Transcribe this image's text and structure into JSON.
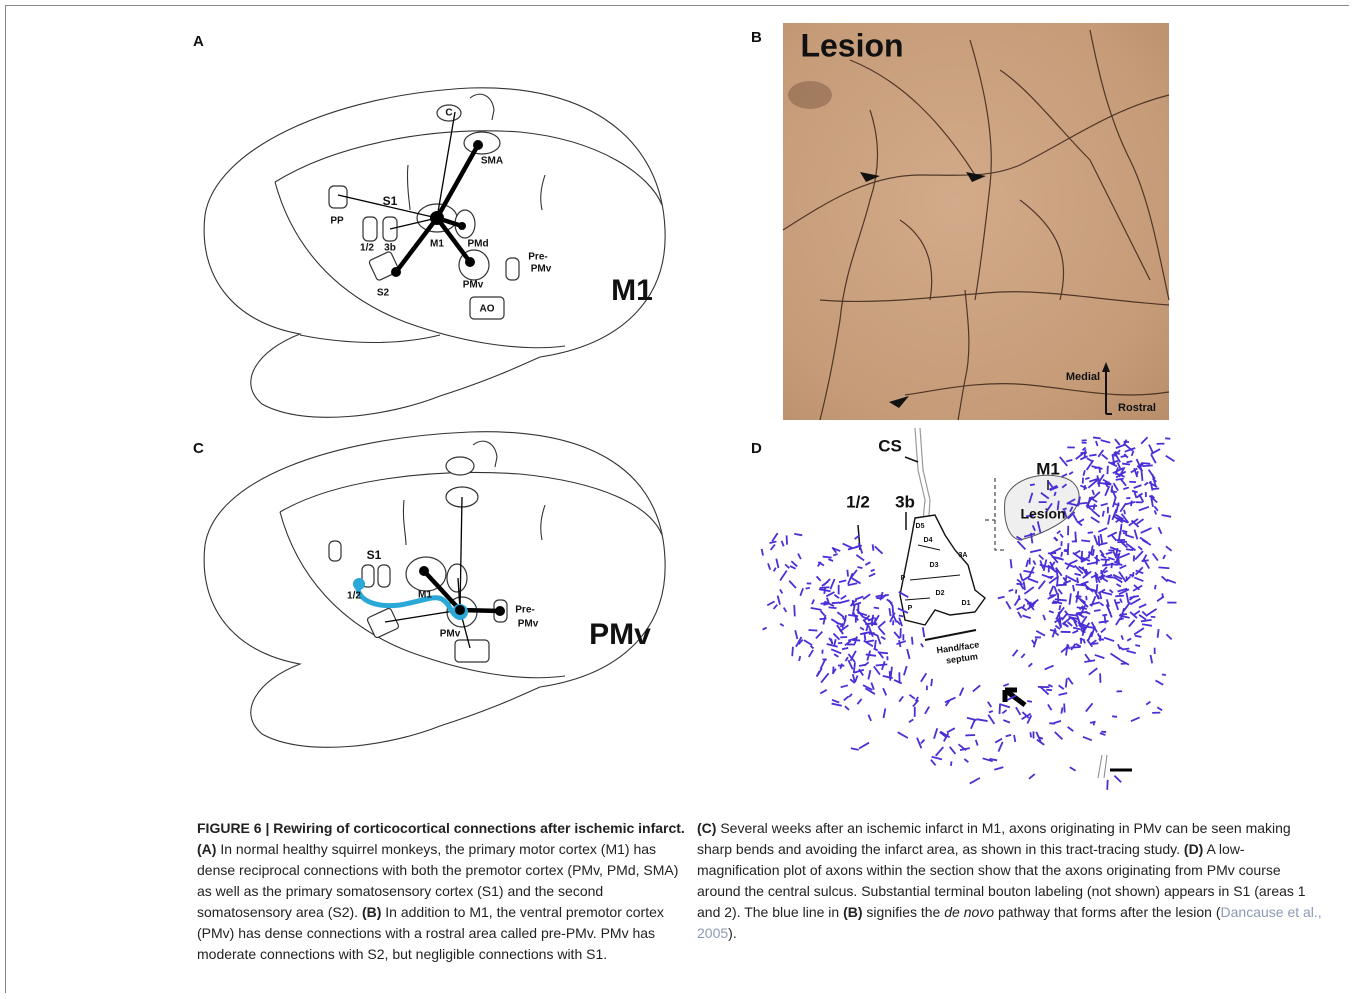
{
  "panels": [
    {
      "letter": "A",
      "labels": [
        "C",
        "SMA",
        "S1",
        "PP",
        "1/2",
        "3b",
        "M1",
        "PMd",
        "Pre-",
        "PMv",
        "S2",
        "PMv",
        "AO",
        "M1"
      ]
    },
    {
      "letter": "B",
      "labels": [
        "Lesion",
        "Medial",
        "Rostral"
      ]
    },
    {
      "letter": "C",
      "labels": [
        "S1",
        "1/2",
        "M1",
        "PMv",
        "Pre-",
        "PMv",
        "PMv"
      ]
    },
    {
      "letter": "D",
      "labels": [
        "CS",
        "M1",
        "1/2",
        "3b",
        "Lesion",
        "D5",
        "D4",
        "D3",
        "D2",
        "D1",
        "P",
        "P",
        "3A",
        "Hand/face",
        "septum"
      ]
    }
  ],
  "caption": {
    "title": "FIGURE 6 | Rewiring of corticocortical connections after ischemic infarct.",
    "left": [
      {
        "text": "(A)",
        "style": "bold"
      },
      {
        "text": " In normal healthy squirrel monkeys, the primary motor cortex (M1) has dense reciprocal connections with both the premotor cortex (PMv, PMd, SMA) as well as the primary somatosensory cortex (S1) and the second somatosensory area (S2). ",
        "style": "normal"
      },
      {
        "text": "(B)",
        "style": "bold"
      },
      {
        "text": " In addition to M1, the ventral premotor cortex (PMv) has dense connections with a rostral area called pre-PMv. PMv has moderate connections with S2, but negligible connections with S1.",
        "style": "normal"
      }
    ],
    "right": [
      {
        "text": "(C)",
        "style": "bold"
      },
      {
        "text": " Several weeks after an ischemic infarct in M1, axons originating in PMv can be seen making sharp bends and avoiding the infarct area, as shown in this tract-tracing study. ",
        "style": "normal"
      },
      {
        "text": "(D)",
        "style": "bold"
      },
      {
        "text": " A low-magnification plot of axons within the section show that the axons originating from PMv course around the central sulcus. Substantial terminal bouton labeling (not shown) appears in S1 (areas 1 and 2). The blue line in ",
        "style": "normal"
      },
      {
        "text": "(B)",
        "style": "bold"
      },
      {
        "text": " signifies the ",
        "style": "normal"
      },
      {
        "text": "de novo",
        "style": "italic"
      },
      {
        "text": " pathway that forms after the lesion (",
        "style": "normal"
      },
      {
        "text": "Dancause et al., 2005",
        "style": "link"
      },
      {
        "text": ").",
        "style": "normal"
      }
    ]
  }
}
